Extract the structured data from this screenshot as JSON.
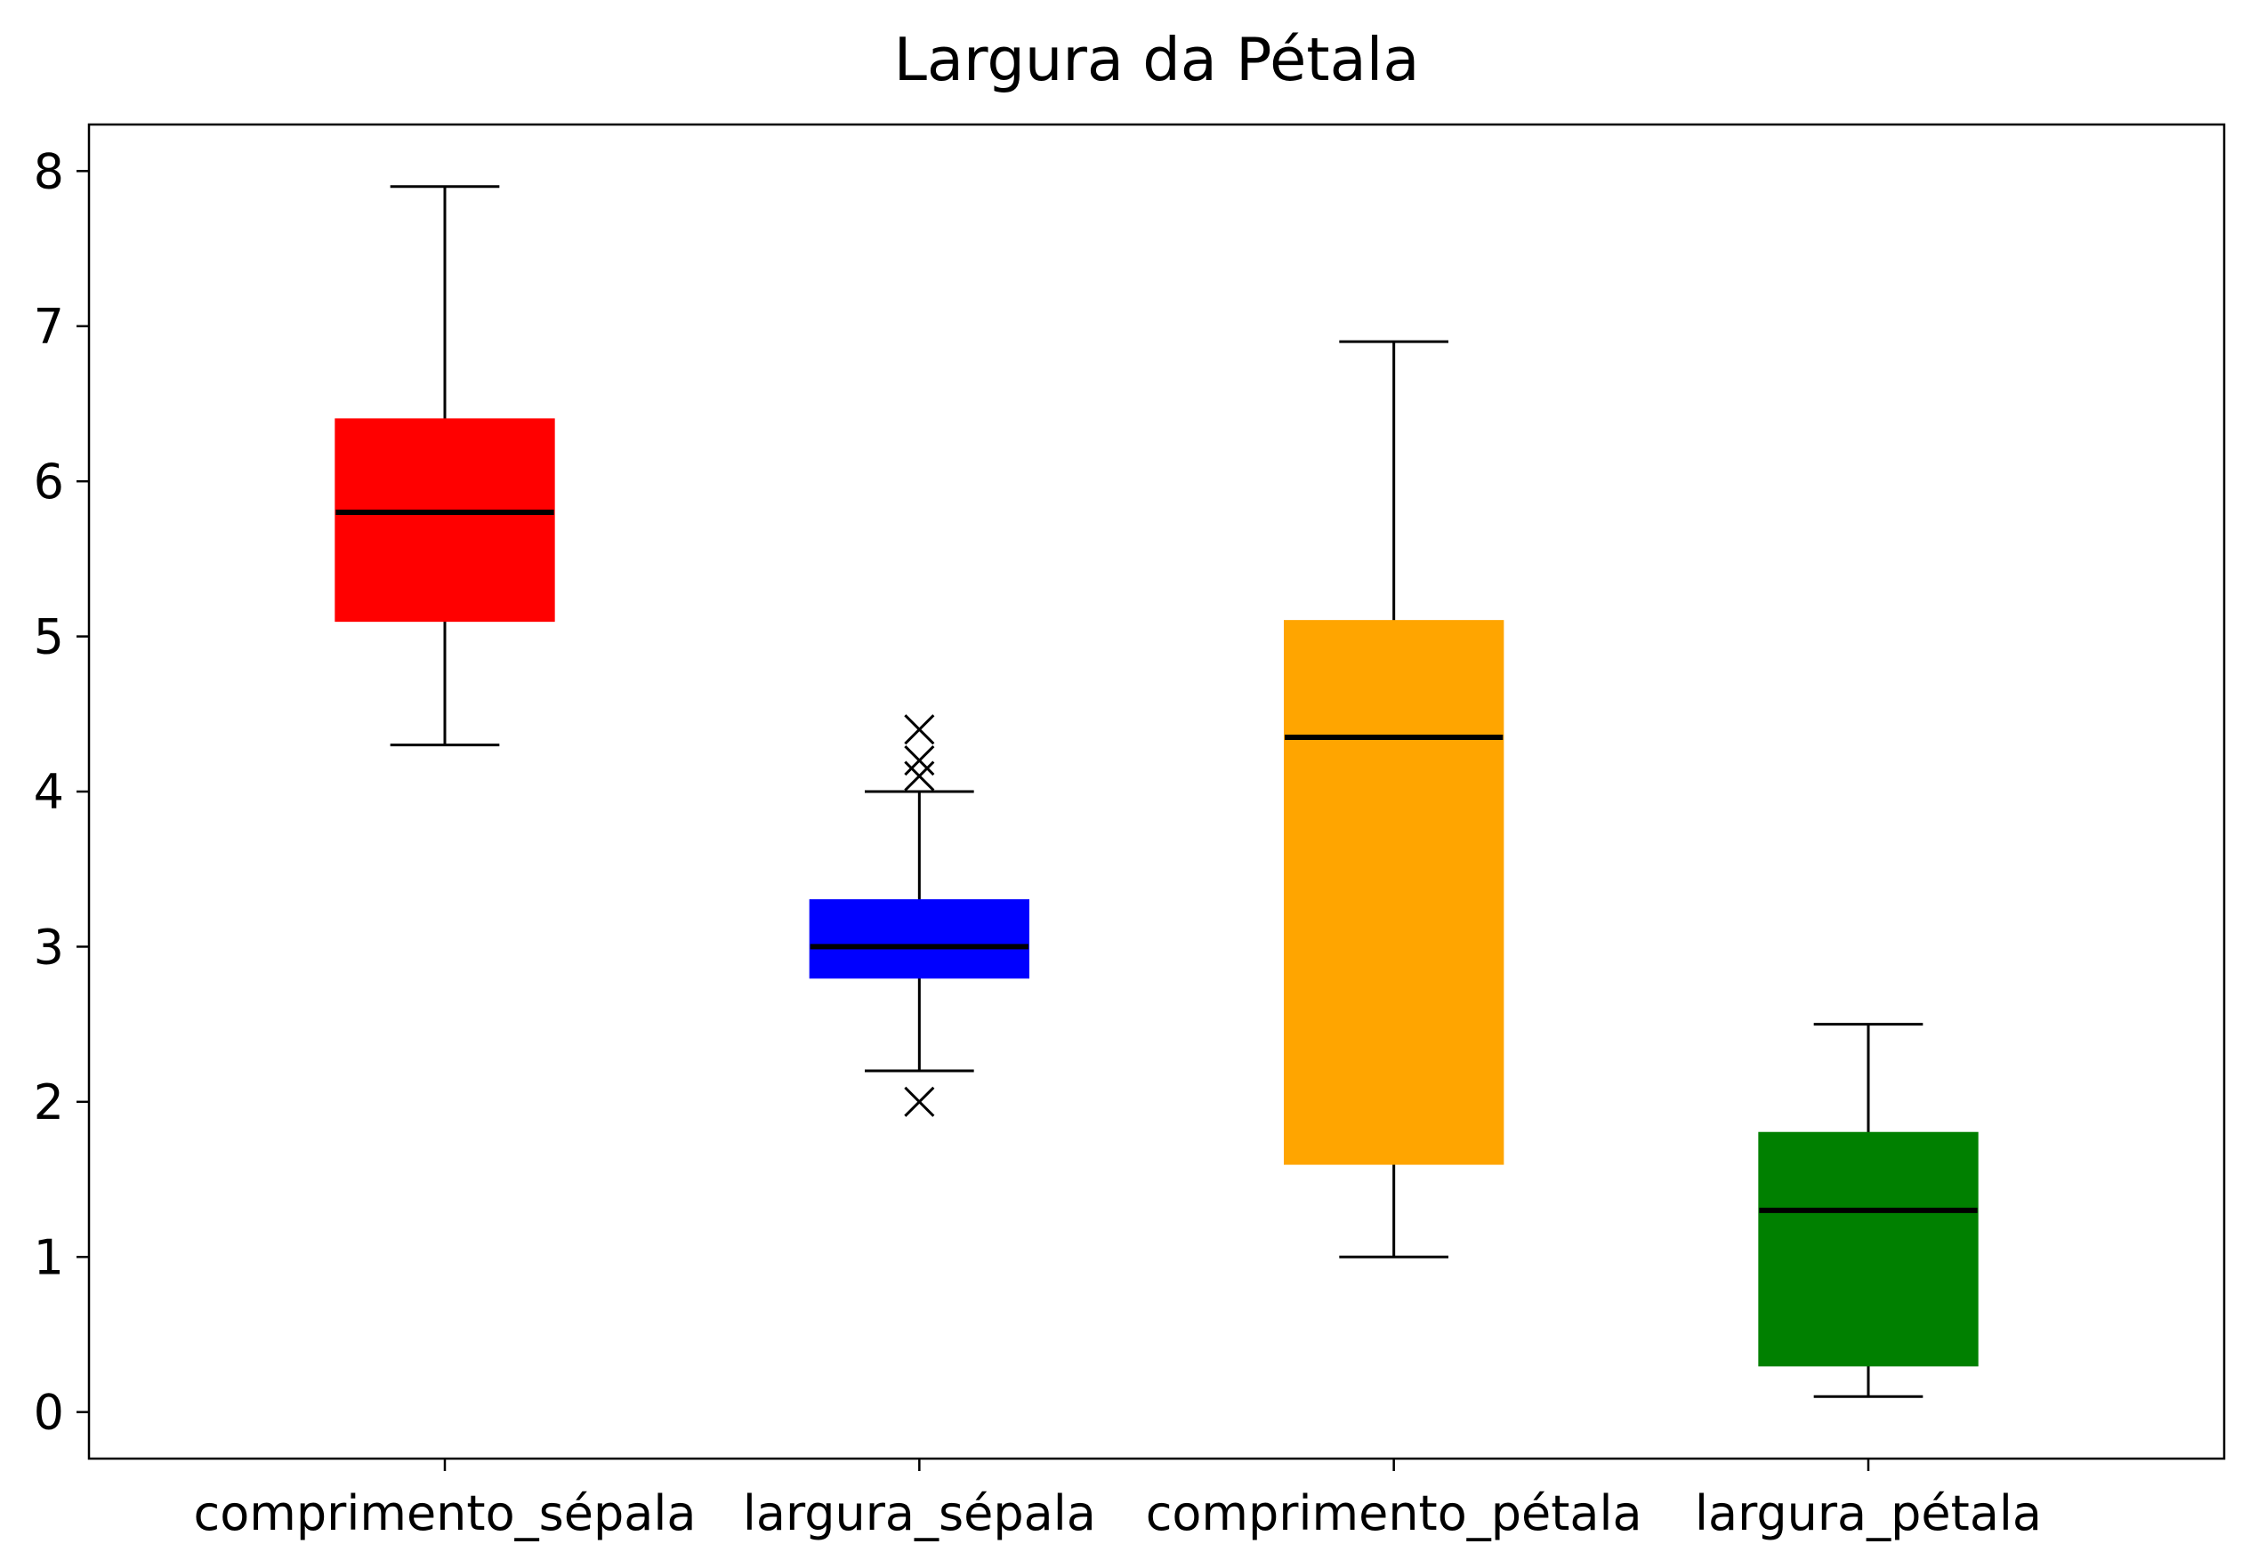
{
  "chart_data": {
    "type": "box",
    "title": "Largura da Pétala",
    "xlabel": "",
    "ylabel": "",
    "ylim": [
      -0.3,
      8.3
    ],
    "yticks": [
      0,
      1,
      2,
      3,
      4,
      5,
      6,
      7,
      8
    ],
    "grid": false,
    "categories": [
      "comprimento_sépala",
      "largura_sépala",
      "comprimento_pétala",
      "largura_pétala"
    ],
    "boxes": [
      {
        "category": "comprimento_sépala",
        "whisker_low": 4.3,
        "q1": 5.1,
        "median": 5.8,
        "q3": 6.4,
        "whisker_high": 7.9,
        "outliers": [],
        "color": "#ff0000"
      },
      {
        "category": "largura_sépala",
        "whisker_low": 2.2,
        "q1": 2.8,
        "median": 3.0,
        "q3": 3.3,
        "whisker_high": 4.0,
        "outliers": [
          4.1,
          4.2,
          4.4,
          2.0
        ],
        "color": "#0000ff"
      },
      {
        "category": "comprimento_pétala",
        "whisker_low": 1.0,
        "q1": 1.6,
        "median": 4.35,
        "q3": 5.1,
        "whisker_high": 6.9,
        "outliers": [],
        "color": "#ffa500"
      },
      {
        "category": "largura_pétala",
        "whisker_low": 0.1,
        "q1": 0.3,
        "median": 1.3,
        "q3": 1.8,
        "whisker_high": 2.5,
        "outliers": [],
        "color": "#008000"
      }
    ],
    "median_color": "#000000",
    "outlier_marker": "x"
  }
}
